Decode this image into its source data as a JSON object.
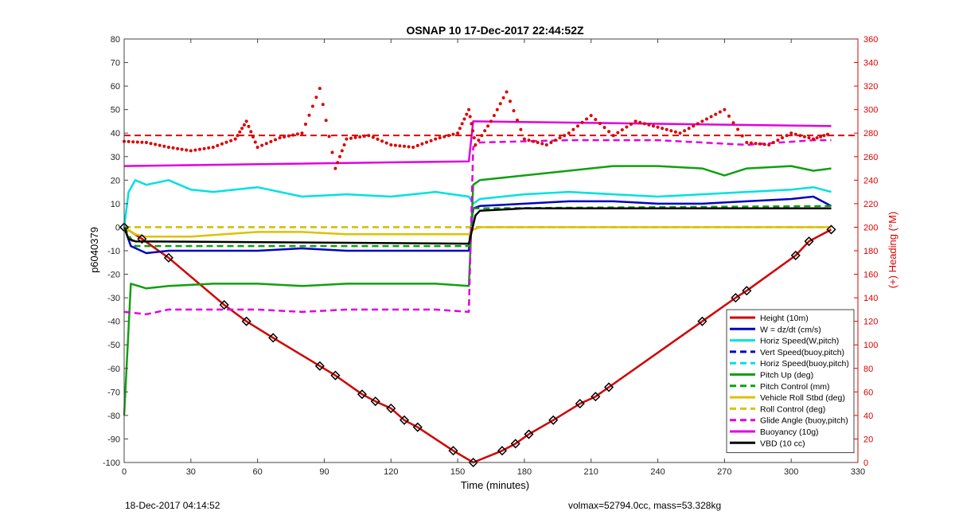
{
  "chart_data": {
    "type": "line",
    "title": "OSNAP 10 17-Dec-2017 22:44:52Z",
    "xlabel": "Time (minutes)",
    "ylabel": "p6040379",
    "y2label": "(+) Heading (°M)",
    "xlim": [
      0,
      330
    ],
    "ylim": [
      -100,
      80
    ],
    "y2lim": [
      0,
      360
    ],
    "xticks": [
      0,
      30,
      60,
      90,
      120,
      150,
      180,
      210,
      240,
      270,
      300,
      330
    ],
    "yticks": [
      -100,
      -90,
      -80,
      -70,
      -60,
      -50,
      -40,
      -30,
      -20,
      -10,
      0,
      10,
      20,
      30,
      40,
      50,
      60,
      70,
      80
    ],
    "y2ticks": [
      0,
      20,
      40,
      60,
      80,
      100,
      120,
      140,
      160,
      180,
      200,
      220,
      240,
      260,
      280,
      300,
      320,
      340,
      360
    ],
    "grid": false,
    "legend_position": "bottom-right",
    "series": [
      {
        "name": "Height (10m)",
        "color": "#d00000",
        "style": "solid",
        "x": [
          0,
          8,
          20,
          45,
          55,
          67,
          88,
          95,
          107,
          113,
          120,
          126,
          132,
          148,
          157,
          170,
          176,
          182,
          193,
          205,
          212,
          218,
          260,
          275,
          280,
          302,
          308,
          318
        ],
        "y": [
          0,
          -5,
          -13,
          -33,
          -40,
          -47,
          -59,
          -63,
          -71,
          -74,
          -77,
          -82,
          -85,
          -95,
          -100,
          -95,
          -92,
          -88,
          -82,
          -75,
          -72,
          -68,
          -40,
          -30,
          -27,
          -12,
          -6,
          -1
        ]
      },
      {
        "name": "W = dz/dt (cm/s)",
        "color": "#0000c0",
        "style": "solid",
        "x": [
          0,
          3,
          10,
          20,
          40,
          60,
          80,
          100,
          120,
          140,
          155,
          157,
          160,
          180,
          200,
          220,
          240,
          260,
          280,
          300,
          310,
          318
        ],
        "y": [
          0,
          -8,
          -11,
          -10,
          -10,
          -10,
          -9,
          -10,
          -10,
          -10,
          -10,
          8,
          9,
          10,
          11,
          11,
          10,
          10,
          11,
          12,
          13,
          9
        ]
      },
      {
        "name": "Horiz Speed(W,pitch)",
        "color": "#00e0e0",
        "style": "solid",
        "x": [
          0,
          2,
          5,
          10,
          20,
          30,
          40,
          60,
          80,
          100,
          120,
          140,
          155,
          157,
          160,
          180,
          200,
          220,
          240,
          260,
          280,
          300,
          310,
          318
        ],
        "y": [
          0,
          15,
          20,
          18,
          20,
          16,
          15,
          17,
          13,
          14,
          13,
          15,
          13,
          10,
          12,
          14,
          15,
          14,
          13,
          14,
          15,
          16,
          17,
          15
        ]
      },
      {
        "name": "Vert Speed(buoy,pitch)",
        "color": "#0000c0",
        "style": "dashed",
        "x": [],
        "y": []
      },
      {
        "name": "Horiz Speed(buoy,pitch)",
        "color": "#00e0e0",
        "style": "dashed",
        "x": [
          0,
          155,
          157,
          318
        ],
        "y": [
          0,
          0,
          0,
          0
        ]
      },
      {
        "name": "Pitch Up (deg)",
        "color": "#10a010",
        "style": "solid",
        "x": [
          0,
          3,
          10,
          20,
          40,
          60,
          80,
          100,
          120,
          140,
          155,
          157,
          160,
          180,
          200,
          220,
          240,
          260,
          270,
          280,
          300,
          310,
          318
        ],
        "y": [
          -80,
          -24,
          -26,
          -25,
          -24,
          -24,
          -25,
          -24,
          -24,
          -24,
          -25,
          18,
          20,
          22,
          24,
          26,
          26,
          25,
          22,
          25,
          26,
          24,
          25
        ]
      },
      {
        "name": "Pitch Control (mm)",
        "color": "#10a010",
        "style": "dashed",
        "x": [
          0,
          5,
          155,
          157,
          318
        ],
        "y": [
          0,
          -8,
          -8,
          8,
          9
        ]
      },
      {
        "name": "Vehicle Roll Stbd (deg)",
        "color": "#e0c000",
        "style": "solid",
        "x": [
          0,
          5,
          10,
          30,
          45,
          60,
          80,
          100,
          120,
          140,
          155,
          157,
          160,
          180,
          200,
          220,
          240,
          260,
          280,
          300,
          318
        ],
        "y": [
          0,
          -3,
          -4,
          -4,
          -3,
          -2,
          -2,
          -3,
          -3,
          -3,
          -3,
          -1,
          0,
          0,
          0,
          0,
          0,
          0,
          0,
          0,
          0
        ]
      },
      {
        "name": "Roll Control (deg)",
        "color": "#e0c000",
        "style": "dashed",
        "x": [
          0,
          155,
          157,
          318
        ],
        "y": [
          0,
          0,
          0,
          0
        ]
      },
      {
        "name": "Glide Angle (buoy,pitch)",
        "color": "#e000e0",
        "style": "dashed",
        "x": [
          0,
          10,
          20,
          40,
          60,
          80,
          100,
          120,
          140,
          155,
          157,
          160,
          200,
          240,
          280,
          310,
          318
        ],
        "y": [
          -36,
          -37,
          -35,
          -35,
          -35,
          -36,
          -35,
          -35,
          -35,
          -36,
          34,
          36,
          37,
          37,
          35,
          37,
          37
        ]
      },
      {
        "name": "Buoyancy (10g)",
        "color": "#e000e0",
        "style": "solid",
        "x": [
          0,
          155,
          157,
          318
        ],
        "y": [
          26,
          28,
          45,
          43
        ]
      },
      {
        "name": "VBD (10 cc)",
        "color": "#000000",
        "style": "solid",
        "x": [
          0,
          2,
          5,
          155,
          158,
          160,
          180,
          240,
          300,
          318
        ],
        "y": [
          0,
          -5,
          -6,
          -7,
          5,
          7,
          8,
          8,
          8,
          8
        ]
      }
    ],
    "heading": {
      "color": "#dd0000",
      "axis": "right",
      "x": [
        0,
        10,
        20,
        30,
        40,
        50,
        55,
        60,
        70,
        80,
        88,
        95,
        100,
        110,
        120,
        130,
        140,
        150,
        155,
        158,
        165,
        172,
        180,
        190,
        200,
        210,
        220,
        230,
        240,
        250,
        260,
        270,
        280,
        290,
        300,
        310,
        318
      ],
      "y": [
        273,
        272,
        268,
        265,
        268,
        275,
        290,
        268,
        276,
        280,
        318,
        250,
        275,
        278,
        270,
        268,
        275,
        280,
        300,
        270,
        290,
        315,
        275,
        270,
        280,
        295,
        278,
        290,
        285,
        280,
        290,
        300,
        272,
        270,
        280,
        275,
        280
      ]
    },
    "heading_reference": {
      "y": 278,
      "color": "#dd0000",
      "style": "dashed"
    }
  },
  "footer": {
    "left": "18-Dec-2017 04:14:52",
    "right": "volmax=52794.0cc, mass=53.328kg"
  }
}
